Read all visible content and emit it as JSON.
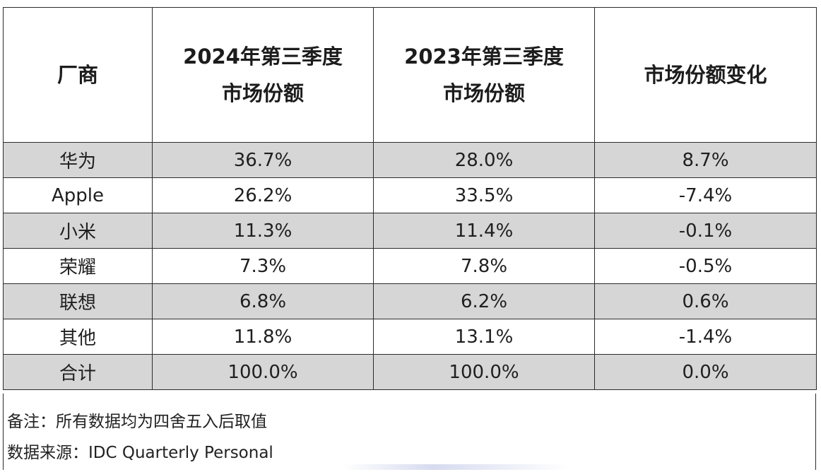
{
  "table": {
    "headers": [
      {
        "lines": [
          "厂商"
        ]
      },
      {
        "lines": [
          "2024年第三季度",
          "市场份额"
        ]
      },
      {
        "lines": [
          "2023年第三季度",
          "市场份额"
        ]
      },
      {
        "lines": [
          "市场份额变化"
        ]
      }
    ],
    "rows": [
      {
        "vendor": "华为",
        "share_2024_q3": "36.7%",
        "share_2023_q3": "28.0%",
        "change": "8.7%"
      },
      {
        "vendor": "Apple",
        "share_2024_q3": "26.2%",
        "share_2023_q3": "33.5%",
        "change": "-7.4%"
      },
      {
        "vendor": "小米",
        "share_2024_q3": "11.3%",
        "share_2023_q3": "11.4%",
        "change": "-0.1%"
      },
      {
        "vendor": "荣耀",
        "share_2024_q3": "7.3%",
        "share_2023_q3": "7.8%",
        "change": "-0.5%"
      },
      {
        "vendor": "联想",
        "share_2024_q3": "6.8%",
        "share_2023_q3": "6.2%",
        "change": "0.6%"
      },
      {
        "vendor": "其他",
        "share_2024_q3": "11.8%",
        "share_2023_q3": "13.1%",
        "change": "-1.4%"
      },
      {
        "vendor": "合计",
        "share_2024_q3": "100.0%",
        "share_2023_q3": "100.0%",
        "change": "0.0%"
      }
    ]
  },
  "notes": {
    "rounding_note": "备注：所有数据均为四舍五入后取值",
    "source_note": "数据来源：IDC Quarterly Personal"
  },
  "colors": {
    "shaded_row": "#d6d6d6",
    "border": "#2b2b2b"
  }
}
